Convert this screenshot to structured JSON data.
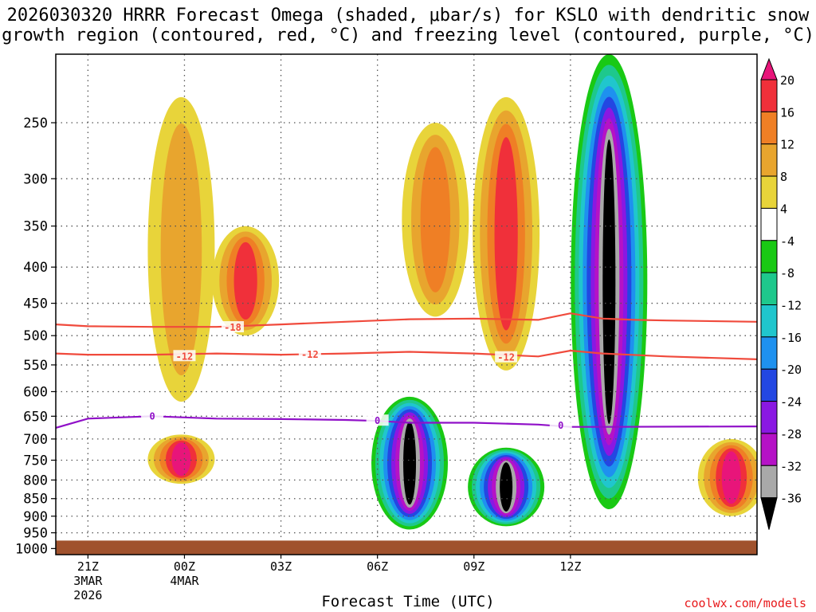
{
  "title": {
    "line1": "2026030320 HRRR Forecast Omega (shaded, μbar/s) for KSLO with dendritic snow",
    "line2": "growth region (contoured, red, °C) and freezing level (contoured, purple, °C)"
  },
  "credit": "coolwx.com/models",
  "chart_data": {
    "type": "heatmap",
    "title": "2026030320 HRRR Forecast Omega (shaded, μbar/s) for KSLO with dendritic snow growth region (contoured, red, °C) and freezing level (contoured, purple, °C)",
    "xlabel": "Forecast Time (UTC)",
    "ylabel": "",
    "x_range_hours_from_21Z": [
      -1,
      20.8
    ],
    "y_range_hPa": [
      200,
      1020
    ],
    "y_scale": "log-pressure",
    "grid": true,
    "x_ticks": [
      {
        "label": "21Z",
        "sub": [
          "3MAR",
          "2026"
        ],
        "hour": 0
      },
      {
        "label": "00Z",
        "sub": [
          "4MAR"
        ],
        "hour": 3
      },
      {
        "label": "03Z",
        "sub": [],
        "hour": 6
      },
      {
        "label": "06Z",
        "sub": [],
        "hour": 9
      },
      {
        "label": "09Z",
        "sub": [],
        "hour": 12
      },
      {
        "label": "12Z",
        "sub": [],
        "hour": 15
      }
    ],
    "y_ticks": [
      250,
      300,
      350,
      400,
      450,
      500,
      550,
      600,
      650,
      700,
      750,
      800,
      850,
      900,
      950,
      1000
    ],
    "colorbar": {
      "labels": [
        "20",
        "16",
        "12",
        "8",
        "4",
        "-4",
        "-8",
        "-12",
        "-16",
        "-20",
        "-24",
        "-28",
        "-32",
        "-36"
      ],
      "levels": [
        {
          "from": 20,
          "to": 24,
          "color": "#e8157a"
        },
        {
          "from": 16,
          "to": 20,
          "color": "#f0303a"
        },
        {
          "from": 12,
          "to": 16,
          "color": "#ef7f25"
        },
        {
          "from": 8,
          "to": 12,
          "color": "#e8a52e"
        },
        {
          "from": 4,
          "to": 8,
          "color": "#e8d43a"
        },
        {
          "from": -4,
          "to": 4,
          "color": "#ffffff"
        },
        {
          "from": -8,
          "to": -4,
          "color": "#19c914"
        },
        {
          "from": -12,
          "to": -8,
          "color": "#1ec88c"
        },
        {
          "from": -16,
          "to": -12,
          "color": "#20c6cd"
        },
        {
          "from": -20,
          "to": -16,
          "color": "#1e91ef"
        },
        {
          "from": -24,
          "to": -20,
          "color": "#2347e2"
        },
        {
          "from": -28,
          "to": -24,
          "color": "#8a18e2"
        },
        {
          "from": -32,
          "to": -28,
          "color": "#b512c6"
        },
        {
          "from": -36,
          "to": -32,
          "color": "#a9a9a9"
        },
        {
          "from": -40,
          "to": -36,
          "color": "#000000"
        }
      ]
    },
    "contours": [
      {
        "name": "-18 °C (dendritic snow growth top)",
        "label": "-18",
        "color": "#f04a3c",
        "points": [
          [
            -1,
            482
          ],
          [
            0,
            485
          ],
          [
            2,
            486
          ],
          [
            4,
            486
          ],
          [
            6,
            482
          ],
          [
            8,
            478
          ],
          [
            10,
            474
          ],
          [
            12,
            473
          ],
          [
            14,
            475
          ],
          [
            15,
            465
          ],
          [
            16,
            473
          ],
          [
            17,
            475
          ],
          [
            18,
            476
          ],
          [
            20.8,
            478
          ]
        ],
        "labels_at": [
          [
            4.5,
            487
          ]
        ]
      },
      {
        "name": "-12 °C (dendritic snow growth bottom)",
        "label": "-12",
        "color": "#f04a3c",
        "points": [
          [
            -1,
            530
          ],
          [
            0,
            532
          ],
          [
            2,
            532
          ],
          [
            4,
            530
          ],
          [
            6,
            532
          ],
          [
            8,
            530
          ],
          [
            10,
            527
          ],
          [
            12,
            530
          ],
          [
            14,
            535
          ],
          [
            15,
            525
          ],
          [
            16,
            530
          ],
          [
            18,
            535
          ],
          [
            20.8,
            540
          ]
        ],
        "labels_at": [
          [
            3,
            535
          ],
          [
            6.9,
            532
          ],
          [
            13,
            537
          ]
        ]
      },
      {
        "name": "0 °C (freezing level)",
        "label": "0",
        "color": "#9010c8",
        "points": [
          [
            -1,
            675
          ],
          [
            0,
            655
          ],
          [
            2,
            650
          ],
          [
            4,
            655
          ],
          [
            6,
            656
          ],
          [
            8,
            658
          ],
          [
            9,
            660
          ],
          [
            10,
            664
          ],
          [
            12,
            664
          ],
          [
            14,
            668
          ],
          [
            15,
            673
          ],
          [
            16,
            673
          ],
          [
            20.8,
            672
          ]
        ],
        "labels_at": [
          [
            2,
            650
          ],
          [
            9,
            660
          ],
          [
            14.7,
            670
          ]
        ]
      }
    ],
    "features": [
      {
        "kind": "upward",
        "hour": 16.2,
        "hPa_top": 200,
        "hPa_bottom": 880,
        "min_omega": -40,
        "note": "deep strong ascent"
      },
      {
        "kind": "upward",
        "hour": 10,
        "hPa_top": 610,
        "hPa_bottom": 940,
        "min_omega": -40
      },
      {
        "kind": "upward",
        "hour": 13,
        "hPa_top": 720,
        "hPa_bottom": 930,
        "min_omega": -40
      },
      {
        "kind": "downward",
        "hour": 2.9,
        "hPa_top": 230,
        "hPa_bottom": 620,
        "max_omega": 12
      },
      {
        "kind": "downward",
        "hour": 4.9,
        "hPa_top": 350,
        "hPa_bottom": 500,
        "max_omega": 18
      },
      {
        "kind": "downward",
        "hour": 2.9,
        "hPa_top": 690,
        "hPa_bottom": 810,
        "max_omega": 22
      },
      {
        "kind": "downward",
        "hour": 10.8,
        "hPa_top": 250,
        "hPa_bottom": 470,
        "max_omega": 14
      },
      {
        "kind": "downward",
        "hour": 13,
        "hPa_top": 230,
        "hPa_bottom": 560,
        "max_omega": 20
      },
      {
        "kind": "downward",
        "hour": 20,
        "hPa_top": 700,
        "hPa_bottom": 900,
        "max_omega": 22
      }
    ],
    "ground_hPa": 1000
  }
}
